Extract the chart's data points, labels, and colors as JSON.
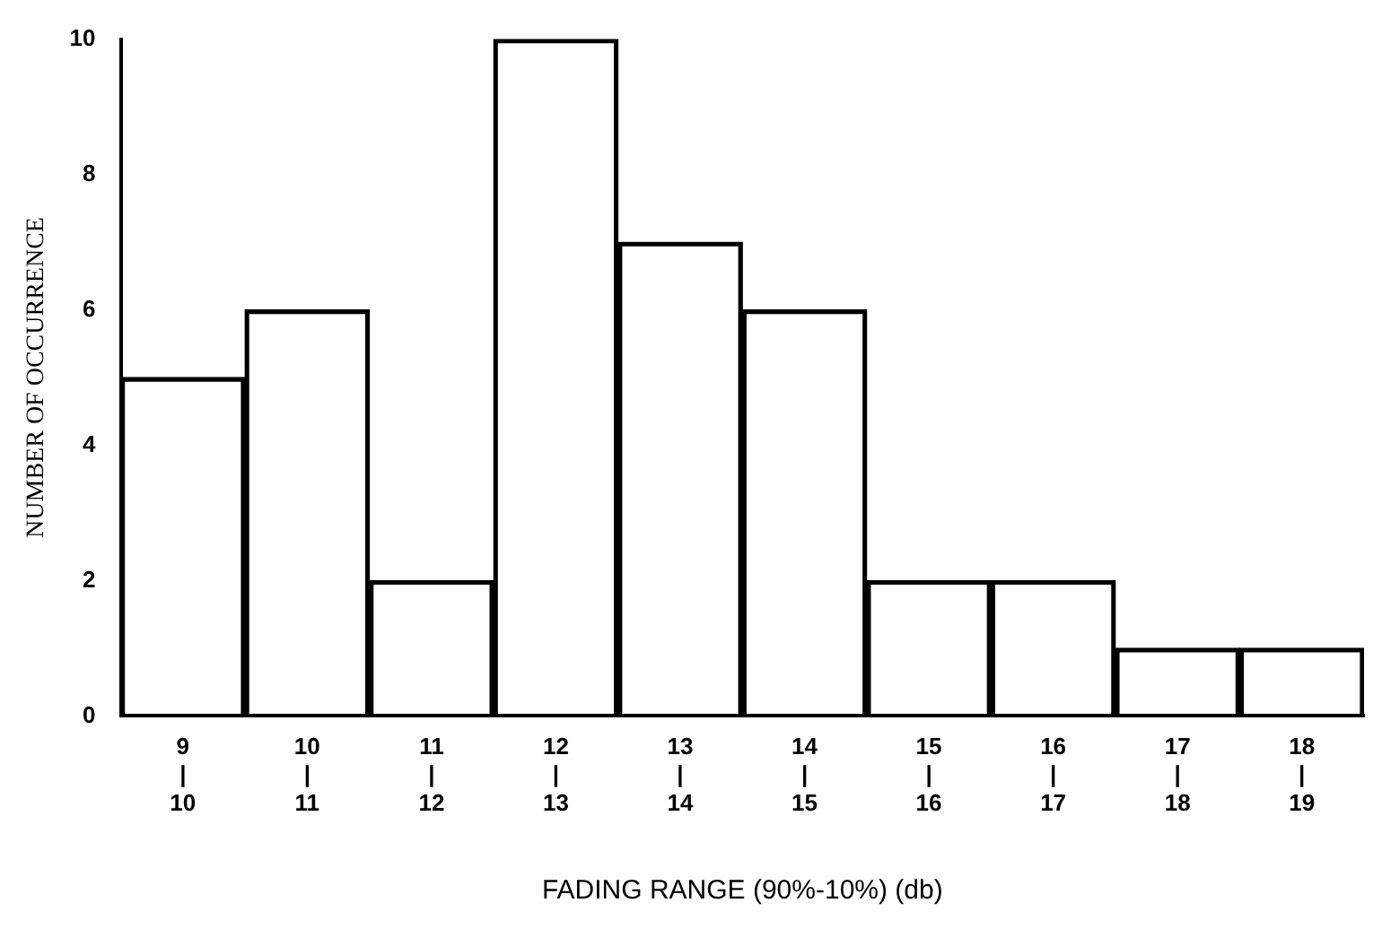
{
  "chart_data": {
    "type": "bar",
    "xlabel": "FADING RANGE (90%-10%) (db)",
    "ylabel": "NUMBER OF OCCURRENCE",
    "categories": [
      "9\n|\n10",
      "10\n|\n11",
      "11\n|\n12",
      "12\n|\n13",
      "13\n|\n14",
      "14\n|\n15",
      "15\n|\n16",
      "16\n|\n17",
      "17\n|\n18",
      "18\n|\n19"
    ],
    "values": [
      5,
      6,
      2,
      10,
      7,
      6,
      2,
      2,
      1,
      1
    ],
    "color": "#000000",
    "ylim": [
      0,
      10
    ],
    "yticks": [
      0,
      2,
      4,
      6,
      8,
      10
    ]
  }
}
